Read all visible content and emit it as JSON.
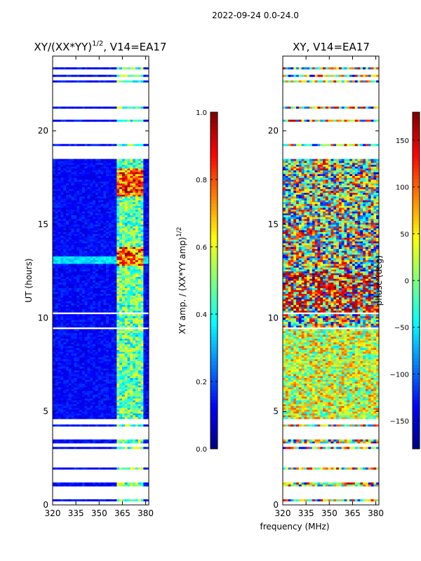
{
  "chart_data": {
    "suptitle": "2022-09-24 0.0-24.0",
    "xlabel": "frequency (MHz)",
    "panels": [
      {
        "type": "heatmap",
        "title": "XY/(XX*YY)",
        "title_sup": "1/2",
        "title_suffix": ", V14=EA17",
        "ylabel": "UT (hours)",
        "xlim": [
          320,
          382
        ],
        "ylim": [
          0,
          24
        ],
        "xticks": [
          320,
          335,
          350,
          365,
          380
        ],
        "yticks": [
          0,
          5,
          10,
          15,
          20
        ],
        "colorbar": {
          "label": "XY amp. / (XX*YY amp)",
          "label_sup": "1/2",
          "colormap": "jet",
          "range": [
            0.0,
            1.0
          ],
          "ticks": [
            "0.0",
            "0.2",
            "0.4",
            "0.6",
            "0.8",
            "1.0"
          ],
          "tick_values": [
            0.0,
            0.2,
            0.4,
            0.6,
            0.8,
            1.0
          ]
        }
      },
      {
        "type": "heatmap",
        "title": "XY, V14=EA17",
        "ylabel": "",
        "xlim": [
          320,
          382
        ],
        "ylim": [
          0,
          24
        ],
        "xticks": [
          320,
          335,
          350,
          365,
          380
        ],
        "yticks": [
          0,
          5,
          10,
          15,
          20
        ],
        "colorbar": {
          "label": "phase (deg)",
          "colormap": "jet",
          "range": [
            -180,
            180
          ],
          "ticks": [
            "−150",
            "−100",
            "−50",
            "0",
            "50",
            "100",
            "150"
          ],
          "tick_values": [
            -150,
            -100,
            -50,
            0,
            50,
            100,
            150
          ]
        }
      }
    ],
    "data_rows_ut": [
      [
        0.2,
        0.3
      ],
      [
        1.0,
        1.2
      ],
      [
        1.9,
        2.0
      ],
      [
        2.3,
        2.35
      ],
      [
        3.0,
        3.1
      ],
      [
        3.3,
        3.5
      ],
      [
        4.2,
        4.3
      ],
      [
        4.6,
        9.4
      ],
      [
        9.5,
        10.2
      ],
      [
        10.3,
        18.5
      ],
      [
        19.2,
        19.3
      ],
      [
        20.5,
        20.6
      ],
      [
        21.2,
        21.3
      ],
      [
        22.6,
        22.7
      ],
      [
        22.9,
        23.0
      ],
      [
        23.3,
        23.4
      ]
    ],
    "rfi_band_mhz": [
      362,
      378
    ],
    "bright_amp_ut": [
      [
        12.8,
        13.8
      ],
      [
        16.5,
        18.0
      ]
    ]
  }
}
